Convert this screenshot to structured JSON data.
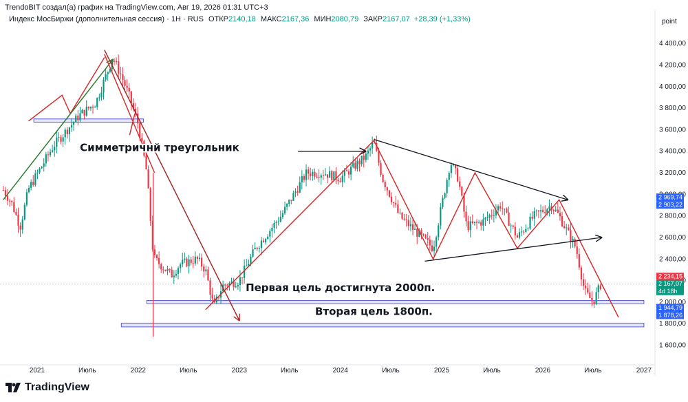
{
  "credit": "TrendoBIT создал(а) график на TradingView.com, Авг 19, 2026 01:31 UTC+3",
  "header": {
    "symbol": "Индекс МосБиржи (дополнительная сессия)",
    "interval": "1H",
    "exchange": "RUS",
    "open_label": "ОТКР",
    "open": "2140,18",
    "high_label": "МАКС",
    "high": "2167,36",
    "low_label": "МИН",
    "low": "2080,79",
    "close_label": "ЗАКР",
    "close": "2167,07",
    "change": "+28,39 (+1,33%)"
  },
  "footer": {
    "brand": "TradingView"
  },
  "colors": {
    "up": "#089981",
    "down": "#f23645",
    "trend_red": "#d32f2f",
    "trend_green": "#2e7d32",
    "zone": "#5b5fd6",
    "black": "#131722"
  },
  "chart_data": {
    "type": "candlestick",
    "title": "",
    "y_axis_label": "point",
    "ylim": [
      1450,
      4580
    ],
    "y_ticks": [
      "4 400,00",
      "4 200,00",
      "4 000,00",
      "3 800,00",
      "3 600,00",
      "3 400,00",
      "3 200,00",
      "3 000,00",
      "2 800,00",
      "2 600,00",
      "2 400,00",
      "2 200,00",
      "2 000,00",
      "1 800,00",
      "1 600,00"
    ],
    "y_tick_values": [
      4400,
      4200,
      4000,
      3800,
      3600,
      3400,
      3200,
      3000,
      2800,
      2600,
      2400,
      2200,
      2000,
      1800,
      1600
    ],
    "x_ticks": [
      "2021",
      "Июль",
      "2022",
      "Июль",
      "2023",
      "Июль",
      "2024",
      "Июль",
      "2025",
      "Июль",
      "2026",
      "Июль",
      "2027"
    ],
    "x_tick_dates": [
      "2021-01",
      "2021-07",
      "2022-01",
      "2022-07",
      "2023-01",
      "2023-07",
      "2024-01",
      "2024-07",
      "2025-01",
      "2025-07",
      "2026-01",
      "2026-07",
      "2027-01"
    ],
    "price_path": [
      [
        "2020-09",
        3040
      ],
      [
        "2020-10",
        2920
      ],
      [
        "2020-11",
        2700
      ],
      [
        "2020-12",
        3050
      ],
      [
        "2021-03",
        3450
      ],
      [
        "2021-06",
        3730
      ],
      [
        "2021-08",
        3850
      ],
      [
        "2021-10",
        4270
      ],
      [
        "2021-11",
        4100
      ],
      [
        "2021-12",
        3900
      ],
      [
        "2022-01",
        3650
      ],
      [
        "2022-02",
        3200
      ],
      [
        "2022-02-24",
        2450
      ],
      [
        "2022-03",
        2400
      ],
      [
        "2022-05",
        2250
      ],
      [
        "2022-06",
        2350
      ],
      [
        "2022-08",
        2400
      ],
      [
        "2022-09",
        2300
      ],
      [
        "2022-10",
        1950
      ],
      [
        "2022-11",
        2150
      ],
      [
        "2023-01",
        2200
      ],
      [
        "2023-03",
        2500
      ],
      [
        "2023-06",
        2800
      ],
      [
        "2023-09",
        3200
      ],
      [
        "2023-11",
        3200
      ],
      [
        "2024-01",
        3150
      ],
      [
        "2024-04",
        3350
      ],
      [
        "2024-05",
        3480
      ],
      [
        "2024-06",
        3150
      ],
      [
        "2024-08",
        2800
      ],
      [
        "2024-10",
        2650
      ],
      [
        "2024-12",
        2500
      ],
      [
        "2025-01",
        2900
      ],
      [
        "2025-02",
        3300
      ],
      [
        "2025-03",
        3150
      ],
      [
        "2025-04",
        2700
      ],
      [
        "2025-06",
        2750
      ],
      [
        "2025-08",
        2900
      ],
      [
        "2025-10",
        2600
      ],
      [
        "2025-12",
        2800
      ],
      [
        "2026-02",
        2900
      ],
      [
        "2026-03",
        2800
      ],
      [
        "2026-05",
        2500
      ],
      [
        "2026-06",
        2100
      ],
      [
        "2026-07",
        2000
      ],
      [
        "2026-08",
        2180
      ]
    ],
    "zones": [
      {
        "from": "2020-12-20",
        "to": "2022-01-20",
        "low": 3670,
        "high": 3700
      },
      {
        "from": "2022-02",
        "to": "2027-01",
        "low": 1985,
        "high": 2015
      },
      {
        "from": "2021-11",
        "to": "2027-01",
        "low": 1770,
        "high": 1805
      }
    ],
    "trend_lines": [
      {
        "color": "red",
        "points": [
          [
            "2020-12",
            3680
          ],
          [
            "2021-04",
            3920
          ],
          [
            "2021-05",
            3750
          ],
          [
            "2021-09",
            4270
          ]
        ]
      },
      {
        "color": "green",
        "arrow": true,
        "points": [
          [
            "2020-09",
            2950
          ],
          [
            "2021-10",
            4250
          ]
        ]
      },
      {
        "color": "red",
        "points": [
          [
            "2021-09",
            4300
          ],
          [
            "2022-03",
            3200
          ]
        ]
      },
      {
        "color": "darkred",
        "arrow": true,
        "points": [
          [
            "2021-09",
            4340
          ],
          [
            "2023-01",
            1830
          ]
        ]
      },
      {
        "color": "red",
        "points": [
          [
            "2021-12",
            3550
          ],
          [
            "2021-12-20",
            3750
          ]
        ]
      },
      {
        "color": "red",
        "points": [
          [
            "2022-09",
            1930
          ],
          [
            "2024-05",
            3500
          ],
          [
            "2024-12",
            2400
          ],
          [
            "2025-05",
            3200
          ],
          [
            "2025-10",
            2500
          ],
          [
            "2026-03",
            2950
          ],
          [
            "2026-10",
            1860
          ]
        ]
      },
      {
        "color": "black",
        "arrow": true,
        "points": [
          [
            "2024-05",
            3510
          ],
          [
            "2026-04",
            2950
          ]
        ]
      },
      {
        "color": "black",
        "arrow": true,
        "points": [
          [
            "2024-11",
            2380
          ],
          [
            "2026-08",
            2600
          ]
        ]
      },
      {
        "color": "black",
        "arrow": true,
        "points": [
          [
            "2023-08",
            3400
          ],
          [
            "2024-04",
            3400
          ]
        ]
      }
    ],
    "annotations": [
      {
        "text": "Симметричнй треугольник",
        "date": "2023-01",
        "price": 3400
      },
      {
        "text": "Первая цель достигнута 2000п.",
        "date": "2024-01",
        "price": 2100
      },
      {
        "text": "Вторая цель 1800п.",
        "date": "2024-05",
        "price": 1880
      }
    ],
    "price_labels": [
      {
        "text": "2 969,74",
        "value": 2969.74,
        "color": "#2962ff"
      },
      {
        "text": "2 903,22",
        "value": 2903.22,
        "color": "#2962ff"
      },
      {
        "text": "2 234,15",
        "value": 2234.15,
        "color": "#f23645"
      },
      {
        "text": "2 234,15",
        "value": 2234.15,
        "color": "#f23645",
        "offset": 1
      },
      {
        "text": "2 167,07",
        "value": 2167.07,
        "color": "#089981"
      },
      {
        "text": "4d 18h",
        "value": 2167.07,
        "color": "#089981",
        "offset": 1
      },
      {
        "text": "1 944,79",
        "value": 1944.79,
        "color": "#2962ff"
      },
      {
        "text": "1 878,26",
        "value": 1878.26,
        "color": "#2962ff"
      }
    ]
  }
}
